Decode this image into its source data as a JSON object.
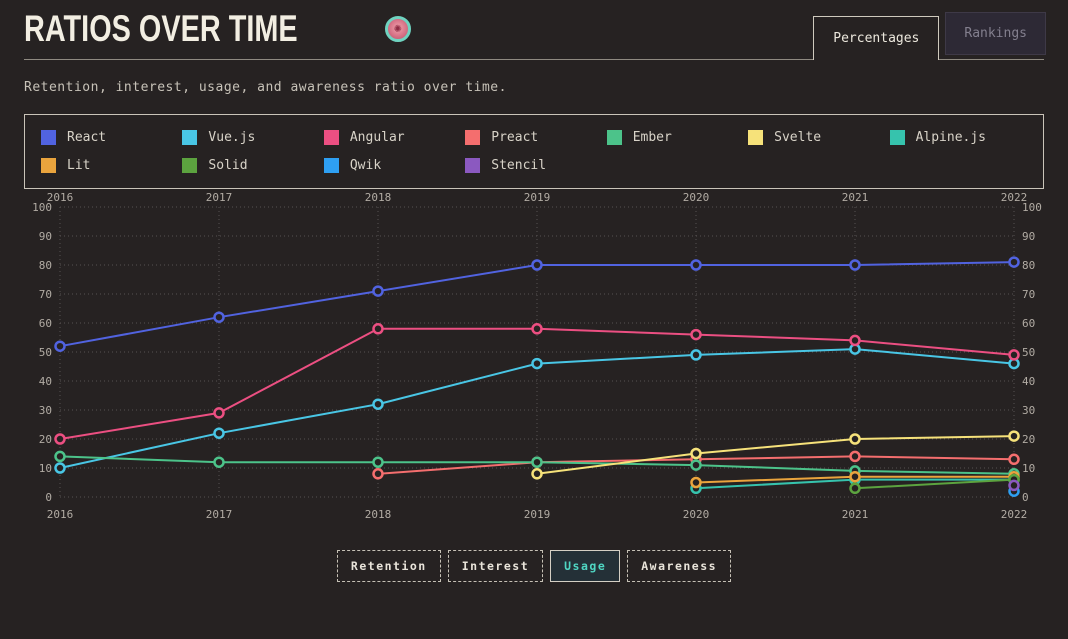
{
  "header": {
    "title": "RATIOS OVER TIME",
    "brand_icon": "flower-badge",
    "tabs": [
      {
        "label": "Percentages",
        "active": true
      },
      {
        "label": "Rankings",
        "active": false
      }
    ]
  },
  "subtitle": "Retention, interest, usage, and awareness ratio over time.",
  "metrics": {
    "active_color": "#4fd6c3",
    "buttons": [
      {
        "label": "Retention",
        "active": false
      },
      {
        "label": "Interest",
        "active": false
      },
      {
        "label": "Usage",
        "active": true
      },
      {
        "label": "Awareness",
        "active": false
      }
    ]
  },
  "chart_data": {
    "type": "line",
    "title": "Ratios over time — Usage",
    "x_labels": [
      "2016",
      "2017",
      "2018",
      "2019",
      "2020",
      "2021",
      "2022"
    ],
    "yticks": [
      0,
      10,
      20,
      30,
      40,
      50,
      60,
      70,
      80,
      90,
      100
    ],
    "ylim": [
      0,
      100
    ],
    "grid": "dotted",
    "legend_position": "top",
    "axis_labels_mirrored": true,
    "background": "#262222",
    "series": [
      {
        "name": "React",
        "color": "#5163e0",
        "values": [
          52,
          62,
          71,
          80,
          80,
          80,
          81
        ]
      },
      {
        "name": "Vue.js",
        "color": "#49c6e5",
        "values": [
          10,
          22,
          32,
          46,
          49,
          51,
          46
        ]
      },
      {
        "name": "Angular",
        "color": "#ec4f82",
        "values": [
          20,
          29,
          58,
          58,
          56,
          54,
          49
        ]
      },
      {
        "name": "Preact",
        "color": "#f46e6e",
        "values": [
          null,
          null,
          8,
          12,
          13,
          14,
          13
        ]
      },
      {
        "name": "Ember",
        "color": "#4cc38a",
        "values": [
          14,
          12,
          12,
          12,
          11,
          9,
          8
        ]
      },
      {
        "name": "Svelte",
        "color": "#f6e27a",
        "values": [
          null,
          null,
          null,
          8,
          15,
          20,
          21
        ]
      },
      {
        "name": "Alpine.js",
        "color": "#36c3ad",
        "values": [
          null,
          null,
          null,
          null,
          3,
          6,
          6
        ]
      },
      {
        "name": "Lit",
        "color": "#eaa43d",
        "values": [
          null,
          null,
          null,
          null,
          5,
          7,
          7
        ]
      },
      {
        "name": "Solid",
        "color": "#5ca33f",
        "values": [
          null,
          null,
          null,
          null,
          null,
          3,
          6
        ]
      },
      {
        "name": "Qwik",
        "color": "#2e9ff2",
        "values": [
          null,
          null,
          null,
          null,
          null,
          null,
          2
        ]
      },
      {
        "name": "Stencil",
        "color": "#8b59c0",
        "values": [
          null,
          null,
          null,
          null,
          null,
          null,
          4
        ]
      }
    ]
  }
}
